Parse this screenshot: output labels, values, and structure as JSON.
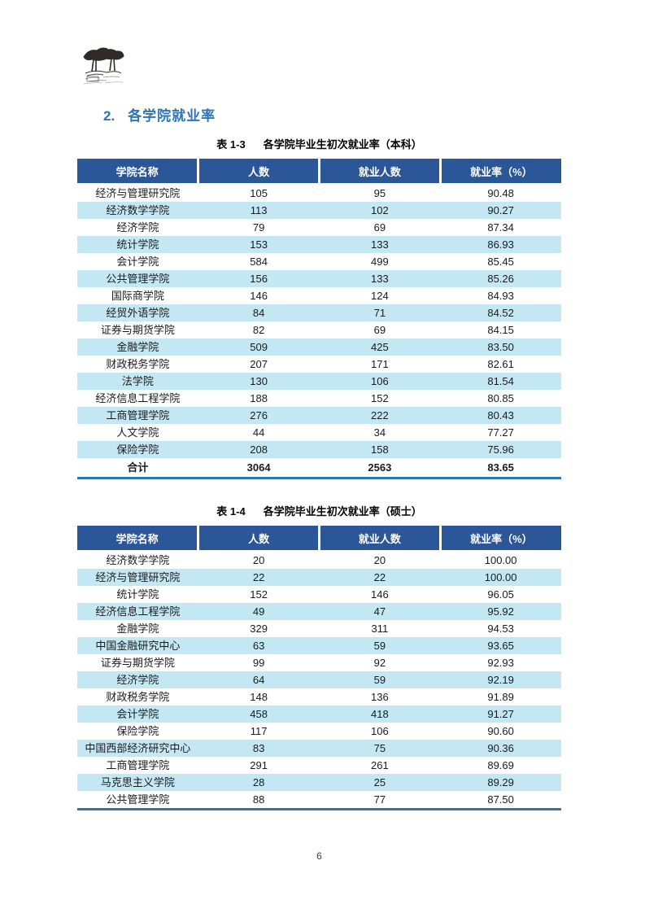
{
  "heading": {
    "number": "2.",
    "title": "各学院就业率"
  },
  "colors": {
    "header_bg": "#2b5798",
    "stripe_bg": "#c3e8f4",
    "bottom_border": "#2e74b5",
    "heading_text": "#2e75b6"
  },
  "logo": {
    "name": "trees-sketch-emblem"
  },
  "tables": [
    {
      "caption_label": "表 1-3",
      "caption_title": "各学院毕业生初次就业率（本科）",
      "columns": [
        "学院名称",
        "人数",
        "就业人数",
        "就业率（%）"
      ],
      "rows": [
        [
          "经济与管理研究院",
          "105",
          "95",
          "90.48"
        ],
        [
          "经济数学学院",
          "113",
          "102",
          "90.27"
        ],
        [
          "经济学院",
          "79",
          "69",
          "87.34"
        ],
        [
          "统计学院",
          "153",
          "133",
          "86.93"
        ],
        [
          "会计学院",
          "584",
          "499",
          "85.45"
        ],
        [
          "公共管理学院",
          "156",
          "133",
          "85.26"
        ],
        [
          "国际商学院",
          "146",
          "124",
          "84.93"
        ],
        [
          "经贸外语学院",
          "84",
          "71",
          "84.52"
        ],
        [
          "证券与期货学院",
          "82",
          "69",
          "84.15"
        ],
        [
          "金融学院",
          "509",
          "425",
          "83.50"
        ],
        [
          "财政税务学院",
          "207",
          "171",
          "82.61"
        ],
        [
          "法学院",
          "130",
          "106",
          "81.54"
        ],
        [
          "经济信息工程学院",
          "188",
          "152",
          "80.85"
        ],
        [
          "工商管理学院",
          "276",
          "222",
          "80.43"
        ],
        [
          "人文学院",
          "44",
          "34",
          "77.27"
        ],
        [
          "保险学院",
          "208",
          "158",
          "75.96"
        ]
      ],
      "total_row": [
        "合计",
        "3064",
        "2563",
        "83.65"
      ]
    },
    {
      "caption_label": "表 1-4",
      "caption_title": "各学院毕业生初次就业率（硕士）",
      "columns": [
        "学院名称",
        "人数",
        "就业人数",
        "就业率（%）"
      ],
      "rows": [
        [
          "经济数学学院",
          "20",
          "20",
          "100.00"
        ],
        [
          "经济与管理研究院",
          "22",
          "22",
          "100.00"
        ],
        [
          "统计学院",
          "152",
          "146",
          "96.05"
        ],
        [
          "经济信息工程学院",
          "49",
          "47",
          "95.92"
        ],
        [
          "金融学院",
          "329",
          "311",
          "94.53"
        ],
        [
          "中国金融研究中心",
          "63",
          "59",
          "93.65"
        ],
        [
          "证券与期货学院",
          "99",
          "92",
          "92.93"
        ],
        [
          "经济学院",
          "64",
          "59",
          "92.19"
        ],
        [
          "财政税务学院",
          "148",
          "136",
          "91.89"
        ],
        [
          "会计学院",
          "458",
          "418",
          "91.27"
        ],
        [
          "保险学院",
          "117",
          "106",
          "90.60"
        ],
        [
          "中国西部经济研究中心",
          "83",
          "75",
          "90.36"
        ],
        [
          "工商管理学院",
          "291",
          "261",
          "89.69"
        ],
        [
          "马克思主义学院",
          "28",
          "25",
          "89.29"
        ],
        [
          "公共管理学院",
          "88",
          "77",
          "87.50"
        ]
      ],
      "total_row": null
    }
  ],
  "page_number": "6"
}
